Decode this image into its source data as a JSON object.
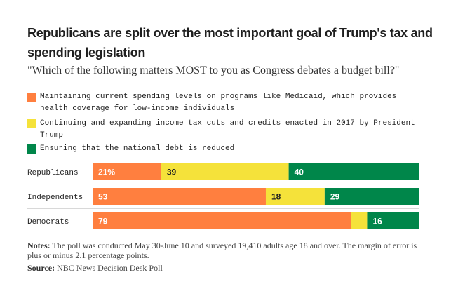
{
  "title": "Republicans are split over the most important goal of Trump's tax and spending legislation",
  "subtitle": "\"Which of the following matters MOST to you as Congress debates a budget bill?\"",
  "notes_label": "Notes:",
  "notes_text": "The poll was conducted May 30-June 10 and surveyed 19,410 adults age 18 and over. The margin of error is plus or minus 2.1 percentage points.",
  "source_label": "Source:",
  "source_text": "NBC News Decision Desk Poll",
  "chart_data": {
    "type": "bar",
    "orientation": "horizontal",
    "stacked": true,
    "categories": [
      "Republicans",
      "Independents",
      "Democrats"
    ],
    "series": [
      {
        "name": "Maintaining current spending levels on programs like Medicaid, which provides health coverage for low-income individuals",
        "color": "#ff7f3f",
        "values": [
          21,
          53,
          79
        ],
        "labels": [
          "21%",
          "53",
          "79"
        ]
      },
      {
        "name": "Continuing and expanding income tax cuts and credits enacted in 2017 by President Trump",
        "color": "#f5e23a",
        "values": [
          39,
          18,
          5
        ],
        "labels": [
          "39",
          "18",
          ""
        ]
      },
      {
        "name": "Ensuring that the national debt is reduced",
        "color": "#00864a",
        "values": [
          40,
          29,
          16
        ],
        "labels": [
          "40",
          "29",
          "16"
        ]
      }
    ],
    "xlim": [
      0,
      100
    ],
    "legend_position": "top-left",
    "grid": false
  }
}
